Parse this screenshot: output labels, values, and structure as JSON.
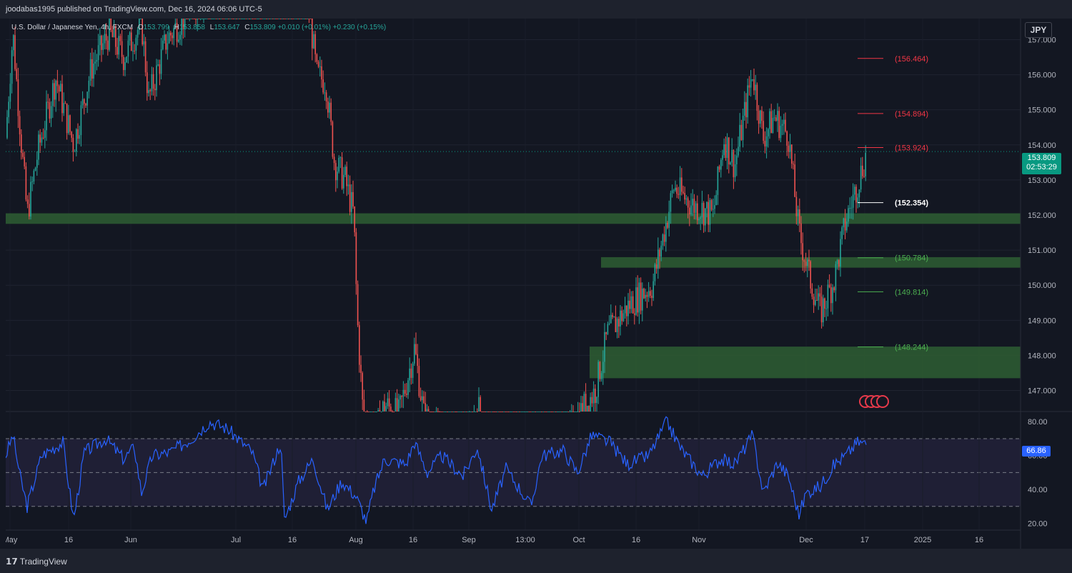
{
  "header": {
    "publisher": "joodabas1995 published on TradingView.com, Dec 16, 2024 06:06 UTC-5"
  },
  "legend": {
    "title": "U.S. Dollar / Japanese Yen, 4h, FXCM",
    "o_label": "O",
    "o": "153.799",
    "h_label": "H",
    "h": "153.858",
    "l_label": "L",
    "l": "153.647",
    "c_label": "C",
    "c": "153.809",
    "change": "+0.010 (+0.01%)",
    "change2": "+0.230 (+0.15%)"
  },
  "currency_button": "JPY",
  "last_price": {
    "price": "153.809",
    "countdown": "02:53:29"
  },
  "rsi_last": "66.86",
  "footer": {
    "brand": "TradingView"
  },
  "colors": {
    "up": "#26a69a",
    "down": "#ef5350",
    "zone": "#2e5e33",
    "rsi": "#2962ff",
    "level_red": "#f23645",
    "level_green": "#4caf50",
    "level_white": "#ffffff"
  },
  "chart_data": {
    "type": "candlestick",
    "symbol": "USDJPY",
    "price_axis": {
      "range": [
        146.4,
        157.6
      ],
      "ticks": [
        "157.000",
        "156.000",
        "155.000",
        "154.000",
        "153.000",
        "152.000",
        "151.000",
        "150.000",
        "149.000",
        "148.000",
        "147.000"
      ]
    },
    "x_ticks": [
      "May",
      "16",
      "Jun",
      "Jul",
      "16",
      "Aug",
      "16",
      "Sep",
      "13:00",
      "Oct",
      "16",
      "Nov",
      "Dec",
      "17",
      "2025",
      "16"
    ],
    "path": [
      [
        0,
        154.2
      ],
      [
        10,
        157.2
      ],
      [
        22,
        154.0
      ],
      [
        30,
        152.0
      ],
      [
        45,
        153.8
      ],
      [
        70,
        155.9
      ],
      [
        95,
        154.0
      ],
      [
        120,
        156.2
      ],
      [
        145,
        157.2
      ],
      [
        165,
        156.5
      ],
      [
        190,
        157.5
      ],
      [
        200,
        155.3
      ],
      [
        225,
        157.0
      ],
      [
        255,
        157.8
      ],
      [
        300,
        158.5
      ],
      [
        345,
        159.0
      ],
      [
        400,
        158.8
      ],
      [
        425,
        157.8
      ],
      [
        435,
        156.0
      ],
      [
        448,
        155.8
      ],
      [
        460,
        153.5
      ],
      [
        475,
        153.0
      ],
      [
        487,
        152.0
      ],
      [
        492,
        149.0
      ],
      [
        500,
        146.3
      ],
      [
        515,
        145.6
      ],
      [
        530,
        146.6
      ],
      [
        550,
        146.3
      ],
      [
        572,
        148.2
      ],
      [
        585,
        146.3
      ],
      [
        600,
        145.9
      ],
      [
        640,
        145.0
      ],
      [
        660,
        146.6
      ],
      [
        700,
        143.5
      ],
      [
        760,
        144.6
      ],
      [
        795,
        146.1
      ],
      [
        825,
        147.0
      ],
      [
        842,
        148.6
      ],
      [
        875,
        149.5
      ],
      [
        905,
        150.0
      ],
      [
        935,
        152.8
      ],
      [
        960,
        152.3
      ],
      [
        990,
        152.0
      ],
      [
        1005,
        154.2
      ],
      [
        1020,
        153.4
      ],
      [
        1045,
        156.1
      ],
      [
        1060,
        154.2
      ],
      [
        1075,
        154.8
      ],
      [
        1095,
        154.3
      ],
      [
        1110,
        151.5
      ],
      [
        1125,
        150.2
      ],
      [
        1140,
        149.2
      ],
      [
        1160,
        150.2
      ],
      [
        1175,
        151.8
      ],
      [
        1192,
        152.9
      ],
      [
        1205,
        153.8
      ]
    ],
    "zones": [
      {
        "from": 151.75,
        "to": 152.05,
        "label": ""
      },
      {
        "from": 150.5,
        "to": 150.8,
        "label": ""
      },
      {
        "from": 147.35,
        "to": 148.25,
        "label": ""
      }
    ],
    "levels": [
      {
        "label": "(156.464)",
        "value": 156.464,
        "color": "red"
      },
      {
        "label": "(154.894)",
        "value": 154.894,
        "color": "red"
      },
      {
        "label": "(153.924)",
        "value": 153.924,
        "color": "red"
      },
      {
        "label": "(152.354)",
        "value": 152.354,
        "color": "white"
      },
      {
        "label": "(150.784)",
        "value": 150.784,
        "color": "green"
      },
      {
        "label": "(149.814)",
        "value": 149.814,
        "color": "green"
      },
      {
        "label": "(148.244)",
        "value": 148.244,
        "color": "green"
      }
    ],
    "rsi": {
      "range": [
        16,
        86
      ],
      "ticks": [
        "80.00",
        "60.00",
        "40.00",
        "20.00"
      ],
      "upper": 70,
      "middle": 50,
      "lower": 30,
      "last": 66.86,
      "path": [
        [
          0,
          60
        ],
        [
          10,
          72
        ],
        [
          20,
          48
        ],
        [
          30,
          30
        ],
        [
          50,
          60
        ],
        [
          80,
          68
        ],
        [
          95,
          22
        ],
        [
          110,
          62
        ],
        [
          140,
          70
        ],
        [
          165,
          58
        ],
        [
          180,
          65
        ],
        [
          190,
          38
        ],
        [
          205,
          60
        ],
        [
          230,
          62
        ],
        [
          260,
          70
        ],
        [
          285,
          80
        ],
        [
          310,
          76
        ],
        [
          345,
          62
        ],
        [
          360,
          40
        ],
        [
          385,
          68
        ],
        [
          390,
          22
        ],
        [
          410,
          45
        ],
        [
          430,
          58
        ],
        [
          450,
          28
        ],
        [
          470,
          45
        ],
        [
          490,
          36
        ],
        [
          505,
          21
        ],
        [
          515,
          40
        ],
        [
          530,
          58
        ],
        [
          560,
          55
        ],
        [
          572,
          68
        ],
        [
          590,
          50
        ],
        [
          610,
          60
        ],
        [
          640,
          48
        ],
        [
          660,
          65
        ],
        [
          680,
          28
        ],
        [
          700,
          52
        ],
        [
          720,
          40
        ],
        [
          735,
          30
        ],
        [
          750,
          60
        ],
        [
          780,
          63
        ],
        [
          800,
          50
        ],
        [
          820,
          72
        ],
        [
          845,
          68
        ],
        [
          870,
          55
        ],
        [
          900,
          60
        ],
        [
          925,
          80
        ],
        [
          945,
          64
        ],
        [
          975,
          48
        ],
        [
          1000,
          58
        ],
        [
          1020,
          55
        ],
        [
          1045,
          72
        ],
        [
          1060,
          38
        ],
        [
          1080,
          56
        ],
        [
          1095,
          48
        ],
        [
          1110,
          25
        ],
        [
          1120,
          38
        ],
        [
          1140,
          42
        ],
        [
          1160,
          55
        ],
        [
          1175,
          60
        ],
        [
          1192,
          68
        ],
        [
          1205,
          67
        ]
      ]
    }
  }
}
